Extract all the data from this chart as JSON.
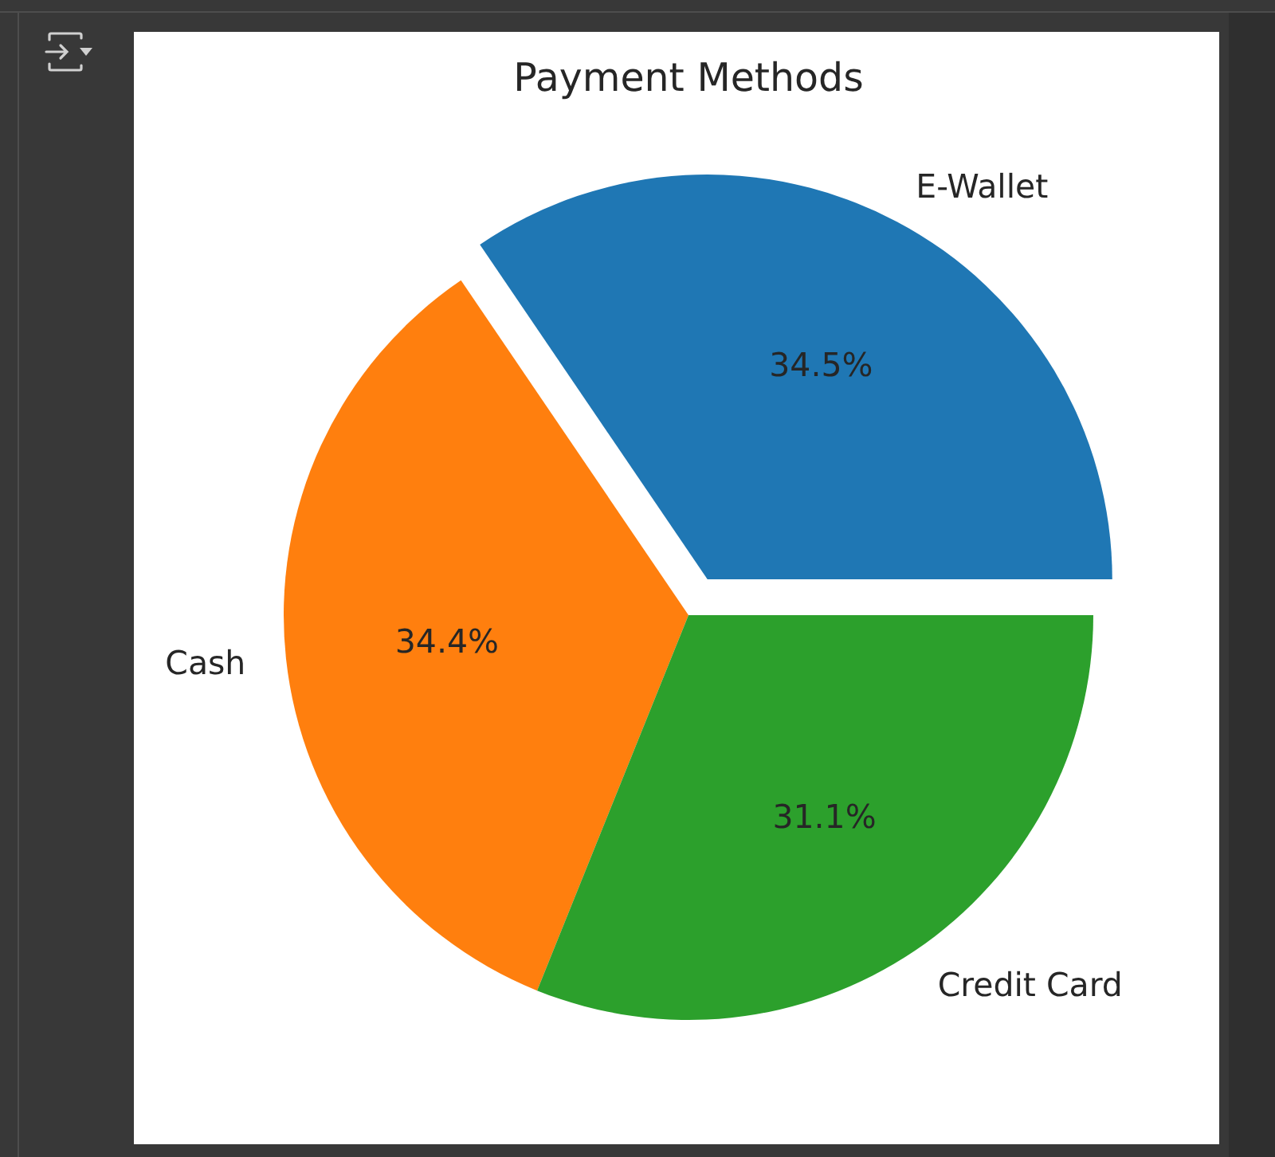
{
  "chart_data": {
    "type": "pie",
    "title": "Payment Methods",
    "categories": [
      "E-Wallet",
      "Cash",
      "Credit Card"
    ],
    "values": [
      34.5,
      34.4,
      31.1
    ],
    "value_labels": [
      "34.5%",
      "34.4%",
      "31.1%"
    ],
    "colors": [
      "#1f77b4",
      "#ff7f0e",
      "#2ca02c"
    ]
  }
}
